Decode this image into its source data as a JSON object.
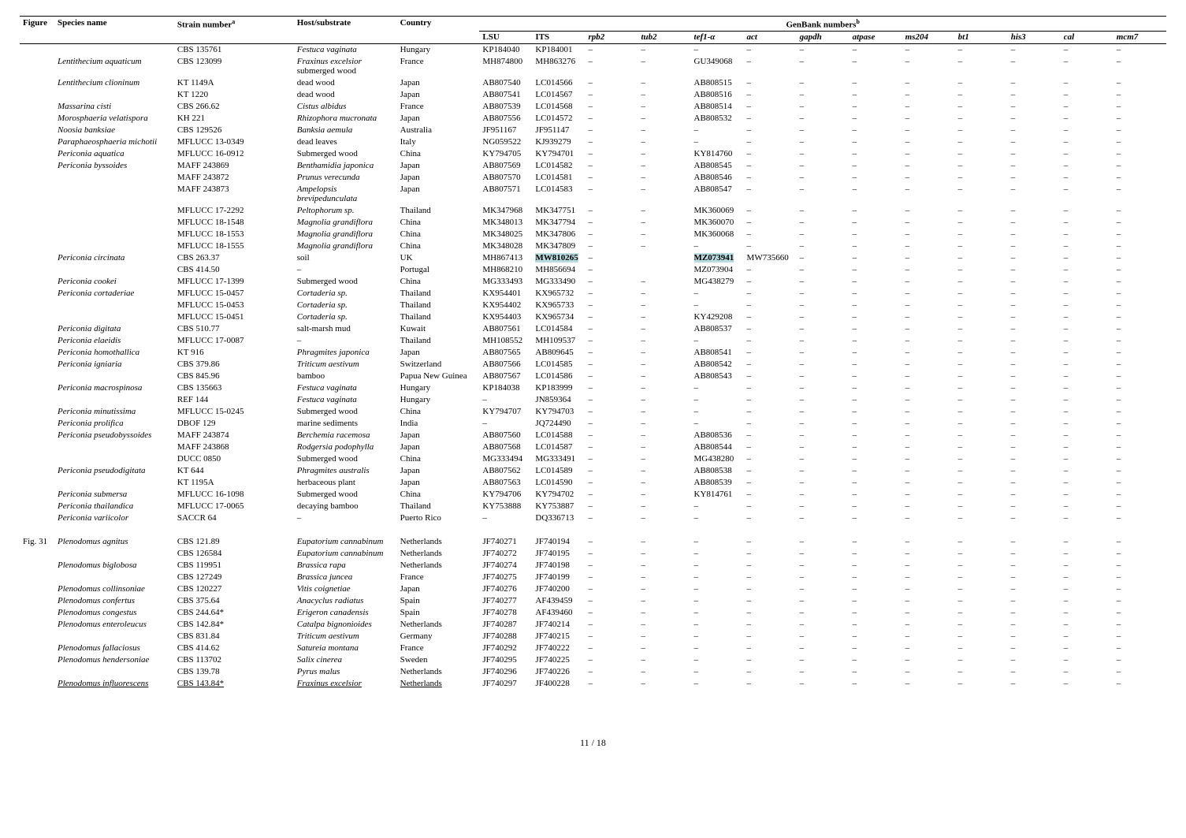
{
  "header": {
    "figure": "Figure",
    "species": "Species name",
    "strain": "Strain number",
    "strain_sup": "a",
    "host": "Host/substrate",
    "country": "Country",
    "genbank_group": "GenBank numbers",
    "genbank_sup": "b",
    "loci": [
      "LSU",
      "ITS",
      "rpb2",
      "tub2",
      "tef1-α",
      "act",
      "gapdh",
      "atpase",
      "ms204",
      "bt1",
      "his3",
      "cal",
      "mcm7"
    ]
  },
  "footer": "11 / 18",
  "colors": {
    "highlight": "#b9dce0"
  },
  "rows": [
    {
      "fig": "",
      "sp": "",
      "st": "CBS 135761",
      "hs": "Festuca vaginata",
      "hs_it": true,
      "ct": "Hungary",
      "a": [
        "KP184040",
        "KP184001",
        "–",
        "–",
        "–",
        "–",
        "–",
        "–",
        "–",
        "–",
        "–",
        "–",
        "–"
      ]
    },
    {
      "fig": "",
      "sp": "Lentithecium aquaticum",
      "st": "CBS 123099",
      "hs": "Fraxinus excelsior",
      "hs_it": true,
      "hs2": "submerged wood",
      "ct": "France",
      "a": [
        "MH874800",
        "MH863276",
        "–",
        "–",
        "GU349068",
        "–",
        "–",
        "–",
        "–",
        "–",
        "–",
        "–",
        "–"
      ]
    },
    {
      "fig": "",
      "sp": "Lentithecium clioninum",
      "st": "KT 1149A",
      "hs": "dead wood",
      "ct": "Japan",
      "a": [
        "AB807540",
        "LC014566",
        "–",
        "–",
        "AB808515",
        "–",
        "–",
        "–",
        "–",
        "–",
        "–",
        "–",
        "–"
      ]
    },
    {
      "fig": "",
      "sp": "",
      "st": "KT 1220",
      "hs": "dead wood",
      "ct": "Japan",
      "a": [
        "AB807541",
        "LC014567",
        "–",
        "–",
        "AB808516",
        "–",
        "–",
        "–",
        "–",
        "–",
        "–",
        "–",
        "–"
      ]
    },
    {
      "fig": "",
      "sp": "Massarina cisti",
      "st": "CBS 266.62",
      "hs": "Cistus albidus",
      "hs_it": true,
      "ct": "France",
      "a": [
        "AB807539",
        "LC014568",
        "–",
        "–",
        "AB808514",
        "–",
        "–",
        "–",
        "–",
        "–",
        "–",
        "–",
        "–"
      ]
    },
    {
      "fig": "",
      "sp": "Morosphaeria velatispora",
      "st": "KH 221",
      "hs": "Rhizophora mucronata",
      "hs_it": true,
      "ct": "Japan",
      "a": [
        "AB807556",
        "LC014572",
        "–",
        "–",
        "AB808532",
        "–",
        "–",
        "–",
        "–",
        "–",
        "–",
        "–",
        "–"
      ]
    },
    {
      "fig": "",
      "sp": "Noosia banksiae",
      "st": "CBS 129526",
      "hs": "Banksia aemula",
      "hs_it": true,
      "ct": "Australia",
      "a": [
        "JF951167",
        "JF951147",
        "–",
        "–",
        "–",
        "–",
        "–",
        "–",
        "–",
        "–",
        "–",
        "–",
        "–"
      ]
    },
    {
      "fig": "",
      "sp": "Paraphaeosphaeria michotii",
      "st": "MFLUCC 13-0349",
      "hs": "dead leaves",
      "ct": "Italy",
      "a": [
        "NG059522",
        "KJ939279",
        "–",
        "–",
        "–",
        "–",
        "–",
        "–",
        "–",
        "–",
        "–",
        "–",
        "–"
      ]
    },
    {
      "fig": "",
      "sp": "Periconia aquatica",
      "st": "MFLUCC 16-0912",
      "hs": "Submerged wood",
      "ct": "China",
      "a": [
        "KY794705",
        "KY794701",
        "–",
        "–",
        "KY814760",
        "–",
        "–",
        "–",
        "–",
        "–",
        "–",
        "–",
        "–"
      ]
    },
    {
      "fig": "",
      "sp": "Periconia byssoides",
      "st": "MAFF 243869",
      "hs": "Benthamidia japonica",
      "hs_it": true,
      "ct": "Japan",
      "a": [
        "AB807569",
        "LC014582",
        "–",
        "–",
        "AB808545",
        "–",
        "–",
        "–",
        "–",
        "–",
        "–",
        "–",
        "–"
      ]
    },
    {
      "fig": "",
      "sp": "",
      "st": "MAFF 243872",
      "hs": "Prunus verecunda",
      "hs_it": true,
      "ct": "Japan",
      "a": [
        "AB807570",
        "LC014581",
        "–",
        "–",
        "AB808546",
        "–",
        "–",
        "–",
        "–",
        "–",
        "–",
        "–",
        "–"
      ]
    },
    {
      "fig": "",
      "sp": "",
      "st": "MAFF 243873",
      "hs": "Ampelopsis",
      "hs_it": true,
      "hs2": "brevipedunculata",
      "hs2_it": true,
      "ct": "Japan",
      "a": [
        "AB807571",
        "LC014583",
        "–",
        "–",
        "AB808547",
        "–",
        "–",
        "–",
        "–",
        "–",
        "–",
        "–",
        "–"
      ]
    },
    {
      "fig": "",
      "sp": "",
      "st": "MFLUCC 17-2292",
      "hs": "Peltophorum sp.",
      "hs_it": true,
      "ct": "Thailand",
      "a": [
        "MK347968",
        "MK347751",
        "–",
        "–",
        "MK360069",
        "–",
        "–",
        "–",
        "–",
        "–",
        "–",
        "–",
        "–"
      ]
    },
    {
      "fig": "",
      "sp": "",
      "st": "MFLUCC 18-1548",
      "hs": "Magnolia grandiflora",
      "hs_it": true,
      "ct": "China",
      "a": [
        "MK348013",
        "MK347794",
        "–",
        "–",
        "MK360070",
        "–",
        "–",
        "–",
        "–",
        "–",
        "–",
        "–",
        "–"
      ]
    },
    {
      "fig": "",
      "sp": "",
      "st": "MFLUCC 18-1553",
      "hs": "Magnolia grandiflora",
      "hs_it": true,
      "ct": "China",
      "a": [
        "MK348025",
        "MK347806",
        "–",
        "–",
        "MK360068",
        "–",
        "–",
        "–",
        "–",
        "–",
        "–",
        "–",
        "–"
      ]
    },
    {
      "fig": "",
      "sp": "",
      "st": "MFLUCC 18-1555",
      "hs": "Magnolia grandiflora",
      "hs_it": true,
      "ct": "China",
      "a": [
        "MK348028",
        "MK347809",
        "–",
        "–",
        "–",
        "–",
        "–",
        "–",
        "–",
        "–",
        "–",
        "–",
        "–"
      ]
    },
    {
      "fig": "",
      "sp": "Periconia circinata",
      "st": "CBS 263.37",
      "hs": "soil",
      "ct": "UK",
      "a": [
        "MH867413",
        "MW810265",
        "–",
        "",
        "MZ073941",
        "MW735660",
        "–",
        "–",
        "–",
        "–",
        "–",
        "–",
        "–"
      ],
      "hl": [
        1,
        3,
        4
      ]
    },
    {
      "fig": "",
      "sp": "",
      "st": "CBS 414.50",
      "hs": "–",
      "ct": "Portugal",
      "a": [
        "MH868210",
        "MH856694",
        "–",
        "",
        "MZ073904",
        "–",
        "–",
        "–",
        "–",
        "–",
        "–",
        "–",
        "–"
      ],
      "hl": [
        3
      ]
    },
    {
      "fig": "",
      "sp": "Periconia cookei",
      "st": "MFLUCC 17-1399",
      "hs": "Submerged wood",
      "ct": "China",
      "a": [
        "MG333493",
        "MG333490",
        "–",
        "–",
        "MG438279",
        "–",
        "–",
        "–",
        "–",
        "–",
        "–",
        "–",
        "–"
      ]
    },
    {
      "fig": "",
      "sp": "Periconia cortaderiae",
      "st": "MFLUCC 15-0457",
      "hs": "Cortaderia sp.",
      "hs_it": true,
      "ct": "Thailand",
      "a": [
        "KX954401",
        "KX965732",
        "–",
        "–",
        "–",
        "–",
        "–",
        "–",
        "–",
        "–",
        "–",
        "–",
        "–"
      ]
    },
    {
      "fig": "",
      "sp": "",
      "st": "MFLUCC 15-0453",
      "hs": "Cortaderia sp.",
      "hs_it": true,
      "ct": "Thailand",
      "a": [
        "KX954402",
        "KX965733",
        "–",
        "–",
        "–",
        "–",
        "–",
        "–",
        "–",
        "–",
        "–",
        "–",
        "–"
      ]
    },
    {
      "fig": "",
      "sp": "",
      "st": "MFLUCC 15-0451",
      "hs": "Cortaderia sp.",
      "hs_it": true,
      "ct": "Thailand",
      "a": [
        "KX954403",
        "KX965734",
        "–",
        "–",
        "KY429208",
        "–",
        "–",
        "–",
        "–",
        "–",
        "–",
        "–",
        "–"
      ]
    },
    {
      "fig": "",
      "sp": "Periconia digitata",
      "st": "CBS 510.77",
      "hs": "salt-marsh mud",
      "ct": "Kuwait",
      "a": [
        "AB807561",
        "LC014584",
        "–",
        "–",
        "AB808537",
        "–",
        "–",
        "–",
        "–",
        "–",
        "–",
        "–",
        "–"
      ]
    },
    {
      "fig": "",
      "sp": "Periconia elaeidis",
      "st": "MFLUCC 17-0087",
      "hs": "–",
      "ct": "Thailand",
      "a": [
        "MH108552",
        "MH109537",
        "–",
        "–",
        "–",
        "–",
        "–",
        "–",
        "–",
        "–",
        "–",
        "–",
        "–"
      ]
    },
    {
      "fig": "",
      "sp": "Periconia homothallica",
      "st": "KT 916",
      "hs": "Phragmites japonica",
      "hs_it": true,
      "ct": "Japan",
      "a": [
        "AB807565",
        "AB809645",
        "–",
        "–",
        "AB808541",
        "–",
        "–",
        "–",
        "–",
        "–",
        "–",
        "–",
        "–"
      ]
    },
    {
      "fig": "",
      "sp": "Periconia igniaria",
      "st": "CBS 379.86",
      "hs": "Triticum aestivum",
      "hs_it": true,
      "ct": "Switzerland",
      "a": [
        "AB807566",
        "LC014585",
        "–",
        "–",
        "AB808542",
        "–",
        "–",
        "–",
        "–",
        "–",
        "–",
        "–",
        "–"
      ]
    },
    {
      "fig": "",
      "sp": "",
      "st": "CBS 845.96",
      "hs": "bamboo",
      "ct": "Papua New Guinea",
      "a": [
        "AB807567",
        "LC014586",
        "–",
        "–",
        "AB808543",
        "–",
        "–",
        "–",
        "–",
        "–",
        "–",
        "–",
        "–"
      ]
    },
    {
      "fig": "",
      "sp": "Periconia macrospinosa",
      "st": "CBS 135663",
      "hs": "Festuca vaginata",
      "hs_it": true,
      "ct": "Hungary",
      "a": [
        "KP184038",
        "KP183999",
        "–",
        "–",
        "–",
        "–",
        "–",
        "–",
        "–",
        "–",
        "–",
        "–",
        "–"
      ]
    },
    {
      "fig": "",
      "sp": "",
      "st": "REF 144",
      "hs": "Festuca vaginata",
      "hs_it": true,
      "ct": "Hungary",
      "a": [
        "–",
        "JN859364",
        "–",
        "–",
        "–",
        "–",
        "–",
        "–",
        "–",
        "–",
        "–",
        "–",
        "–"
      ]
    },
    {
      "fig": "",
      "sp": "Periconia minutissima",
      "st": "MFLUCC 15-0245",
      "hs": "Submerged wood",
      "ct": "China",
      "a": [
        "KY794707",
        "KY794703",
        "–",
        "–",
        "–",
        "–",
        "–",
        "–",
        "–",
        "–",
        "–",
        "–",
        "–"
      ]
    },
    {
      "fig": "",
      "sp": "Periconia prolifica",
      "st": "DBOF 129",
      "hs": "marine sediments",
      "ct": "India",
      "a": [
        "–",
        "JQ724490",
        "–",
        "–",
        "–",
        "–",
        "–",
        "–",
        "–",
        "–",
        "–",
        "–",
        "–"
      ]
    },
    {
      "fig": "",
      "sp": "Periconia pseudobyssoides",
      "st": "MAFF 243874",
      "hs": "Berchemia racemosa",
      "hs_it": true,
      "ct": "Japan",
      "a": [
        "AB807560",
        "LC014588",
        "–",
        "–",
        "AB808536",
        "–",
        "–",
        "–",
        "–",
        "–",
        "–",
        "–",
        "–"
      ]
    },
    {
      "fig": "",
      "sp": "",
      "st": "MAFF 243868",
      "hs": "Rodgersia podophylla",
      "hs_it": true,
      "ct": "Japan",
      "a": [
        "AB807568",
        "LC014587",
        "–",
        "–",
        "AB808544",
        "–",
        "–",
        "–",
        "–",
        "–",
        "–",
        "–",
        "–"
      ]
    },
    {
      "fig": "",
      "sp": "",
      "st": "DUCC 0850",
      "hs": "Submerged wood",
      "ct": "China",
      "a": [
        "MG333494",
        "MG333491",
        "–",
        "–",
        "MG438280",
        "–",
        "–",
        "–",
        "–",
        "–",
        "–",
        "–",
        "–"
      ]
    },
    {
      "fig": "",
      "sp": "Periconia pseudodigitata",
      "st": "KT 644",
      "hs": "Phragmites australis",
      "hs_it": true,
      "ct": "Japan",
      "a": [
        "AB807562",
        "LC014589",
        "–",
        "–",
        "AB808538",
        "–",
        "–",
        "–",
        "–",
        "–",
        "–",
        "–",
        "–"
      ]
    },
    {
      "fig": "",
      "sp": "",
      "st": "KT 1195A",
      "hs": "herbaceous plant",
      "ct": "Japan",
      "a": [
        "AB807563",
        "LC014590",
        "–",
        "–",
        "AB808539",
        "–",
        "–",
        "–",
        "–",
        "–",
        "–",
        "–",
        "–"
      ]
    },
    {
      "fig": "",
      "sp": "Periconia submersa",
      "st": "MFLUCC 16-1098",
      "hs": "Submerged wood",
      "ct": "China",
      "a": [
        "KY794706",
        "KY794702",
        "–",
        "–",
        "KY814761",
        "–",
        "–",
        "–",
        "–",
        "–",
        "–",
        "–",
        "–"
      ]
    },
    {
      "fig": "",
      "sp": "Periconia thailandica",
      "st": "MFLUCC 17-0065",
      "hs": "decaying bamboo",
      "ct": "Thailand",
      "a": [
        "KY753888",
        "KY753887",
        "–",
        "–",
        "–",
        "–",
        "–",
        "–",
        "–",
        "–",
        "–",
        "–",
        "–"
      ]
    },
    {
      "fig": "",
      "sp": "Periconia variicolor",
      "st": "SACCR 64",
      "hs": "–",
      "ct": "Puerto Rico",
      "a": [
        "–",
        "DQ336713",
        "–",
        "–",
        "–",
        "–",
        "–",
        "–",
        "–",
        "–",
        "–",
        "–",
        "–"
      ]
    },
    {
      "blank": true
    },
    {
      "fig": "Fig. 31",
      "sp": "Plenodomus agnitus",
      "st": "CBS 121.89",
      "hs": "Eupatorium cannabinum",
      "hs_it": true,
      "ct": "Netherlands",
      "a": [
        "JF740271",
        "JF740194",
        "–",
        "–",
        "–",
        "–",
        "–",
        "–",
        "–",
        "–",
        "–",
        "–",
        "–"
      ]
    },
    {
      "fig": "",
      "sp": "",
      "st": "CBS 126584",
      "hs": "Eupatorium cannabinum",
      "hs_it": true,
      "ct": "Netherlands",
      "a": [
        "JF740272",
        "JF740195",
        "–",
        "–",
        "–",
        "–",
        "–",
        "–",
        "–",
        "–",
        "–",
        "–",
        "–"
      ]
    },
    {
      "fig": "",
      "sp": "Plenodomus biglobosa",
      "st": "CBS 119951",
      "hs": "Brassica rapa",
      "hs_it": true,
      "ct": "Netherlands",
      "a": [
        "JF740274",
        "JF740198",
        "–",
        "–",
        "–",
        "–",
        "–",
        "–",
        "–",
        "–",
        "–",
        "–",
        "–"
      ]
    },
    {
      "fig": "",
      "sp": "",
      "st": "CBS 127249",
      "hs": "Brassica juncea",
      "hs_it": true,
      "ct": "France",
      "a": [
        "JF740275",
        "JF740199",
        "–",
        "–",
        "–",
        "–",
        "–",
        "–",
        "–",
        "–",
        "–",
        "–",
        "–"
      ]
    },
    {
      "fig": "",
      "sp": "Plenodomus collinsoniae",
      "st": "CBS 120227",
      "hs": "Vitis coignetiae",
      "hs_it": true,
      "ct": "Japan",
      "a": [
        "JF740276",
        "JF740200",
        "–",
        "–",
        "–",
        "–",
        "–",
        "–",
        "–",
        "–",
        "–",
        "–",
        "–"
      ]
    },
    {
      "fig": "",
      "sp": "Plenodomus confertus",
      "st": "CBS 375.64",
      "hs": "Anacyclus radiatus",
      "hs_it": true,
      "ct": "Spain",
      "a": [
        "JF740277",
        "AF439459",
        "–",
        "–",
        "–",
        "–",
        "–",
        "–",
        "–",
        "–",
        "–",
        "–",
        "–"
      ]
    },
    {
      "fig": "",
      "sp": "Plenodomus congestus",
      "st": "CBS 244.64*",
      "hs": "Erigeron canadensis",
      "hs_it": true,
      "ct": "Spain",
      "a": [
        "JF740278",
        "AF439460",
        "–",
        "–",
        "–",
        "–",
        "–",
        "–",
        "–",
        "–",
        "–",
        "–",
        "–"
      ]
    },
    {
      "fig": "",
      "sp": "Plenodomus enteroleucus",
      "st": "CBS 142.84*",
      "hs": "Catalpa bignonioides",
      "hs_it": true,
      "ct": "Netherlands",
      "a": [
        "JF740287",
        "JF740214",
        "–",
        "–",
        "–",
        "–",
        "–",
        "–",
        "–",
        "–",
        "–",
        "–",
        "–"
      ]
    },
    {
      "fig": "",
      "sp": "",
      "st": "CBS 831.84",
      "hs": "Triticum aestivum",
      "hs_it": true,
      "ct": "Germany",
      "a": [
        "JF740288",
        "JF740215",
        "–",
        "–",
        "–",
        "–",
        "–",
        "–",
        "–",
        "–",
        "–",
        "–",
        "–"
      ]
    },
    {
      "fig": "",
      "sp": "Plenodomus fallaciosus",
      "st": "CBS 414.62",
      "hs": "Satureia montana",
      "hs_it": true,
      "ct": "France",
      "a": [
        "JF740292",
        "JF740222",
        "–",
        "–",
        "–",
        "–",
        "–",
        "–",
        "–",
        "–",
        "–",
        "–",
        "–"
      ]
    },
    {
      "fig": "",
      "sp": "Plenodomus hendersoniae",
      "st": "CBS 113702",
      "hs": "Salix cinerea",
      "hs_it": true,
      "ct": "Sweden",
      "a": [
        "JF740295",
        "JF740225",
        "–",
        "–",
        "–",
        "–",
        "–",
        "–",
        "–",
        "–",
        "–",
        "–",
        "–"
      ]
    },
    {
      "fig": "",
      "sp": "",
      "st": "CBS 139.78",
      "hs": "Pyrus malus",
      "hs_it": true,
      "ct": "Netherlands",
      "a": [
        "JF740296",
        "JF740226",
        "–",
        "–",
        "–",
        "–",
        "–",
        "–",
        "–",
        "–",
        "–",
        "–",
        "–"
      ]
    },
    {
      "fig": "",
      "sp": "Plenodomus influorescens",
      "st": "CBS 143.84*",
      "hs": "Fraxinus excelsior",
      "hs_it": true,
      "ct": "Netherlands",
      "a": [
        "JF740297",
        "JF400228",
        "–",
        "–",
        "–",
        "–",
        "–",
        "–",
        "–",
        "–",
        "–",
        "–",
        "–"
      ],
      "under": true
    }
  ]
}
